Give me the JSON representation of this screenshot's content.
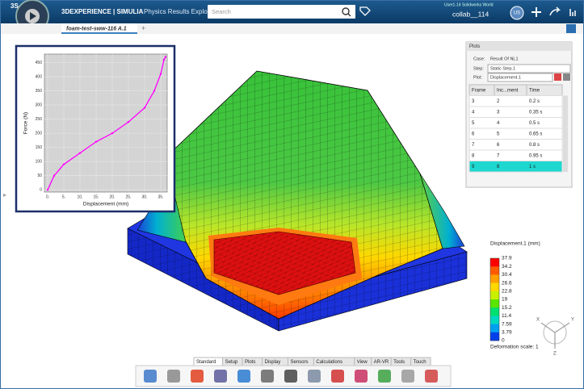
{
  "header": {
    "brand": "3DEXPERIENCE | SIMULIA",
    "app": "Physics Results Explo...",
    "search_placeholder": "Search",
    "user_info": "User1-14 Solidworks World",
    "collab": "collab__114",
    "avatar": "US"
  },
  "tab": {
    "title": "foam-test-sww-116 A.1",
    "add": "+"
  },
  "force_plot": {
    "type": "line",
    "x_label": "Displacement (mm)",
    "y_label": "Force (N)",
    "x": [
      0,
      2,
      5,
      10,
      15,
      20,
      25,
      30,
      33,
      35,
      36,
      36.5
    ],
    "values": [
      0,
      50,
      90,
      130,
      170,
      200,
      240,
      290,
      350,
      410,
      460,
      470
    ],
    "color": "#ff00ff",
    "xlim": [
      -1,
      37
    ],
    "ylim": [
      -8,
      480
    ],
    "xticks": [
      {
        "value": 0,
        "label": "0."
      },
      {
        "value": 5,
        "label": "5."
      },
      {
        "value": 10,
        "label": "10."
      },
      {
        "value": 15,
        "label": "15."
      },
      {
        "value": 20,
        "label": "20."
      },
      {
        "value": 25,
        "label": "25."
      },
      {
        "value": 30,
        "label": "30."
      },
      {
        "value": 35,
        "label": "35."
      }
    ],
    "yticks": [
      0,
      50,
      100,
      150,
      200,
      250,
      300,
      350,
      400,
      450
    ],
    "grid": true
  },
  "plots_panel": {
    "title": "Plots",
    "case_label": "Case:",
    "case": "Result Of NL1",
    "step_label": "Step:",
    "step": "Static Step.1",
    "plot_label": "Plot:",
    "plot": "Displacement.1",
    "columns": [
      "Frame",
      "Inc...ment",
      "Time"
    ],
    "rows": [
      [
        "3",
        "2",
        "0.2 s"
      ],
      [
        "4",
        "3",
        "0.35 s"
      ],
      [
        "5",
        "4",
        "0.5 s"
      ],
      [
        "6",
        "5",
        "0.65 s"
      ],
      [
        "7",
        "6",
        "0.8 s"
      ],
      [
        "8",
        "7",
        "0.95 s"
      ],
      [
        "9",
        "8",
        "1 s"
      ]
    ],
    "selected_row": 6
  },
  "legend": {
    "title": "Displacement.1 (mm)",
    "values": [
      "37.9",
      "34.2",
      "30.4",
      "26.6",
      "22.8",
      "19",
      "15.2",
      "11.4",
      "7.59",
      "3.79",
      "0"
    ],
    "colors": [
      "#ff0000",
      "#ff5a00",
      "#ffa000",
      "#ffd800",
      "#c8f000",
      "#5ae600",
      "#00e070",
      "#00d8c0",
      "#00a0f0",
      "#0040e8"
    ],
    "footer": "Deformation scale: 1"
  },
  "triad": {
    "x": "X",
    "y": "Y",
    "z": "Z"
  },
  "toolbar": {
    "tabs": [
      "Standard",
      "Setup",
      "Plots",
      "Display",
      "Sensors",
      "Calculations",
      "View",
      "AR-VR",
      "Tools",
      "Touch"
    ],
    "active_tab": 0
  }
}
